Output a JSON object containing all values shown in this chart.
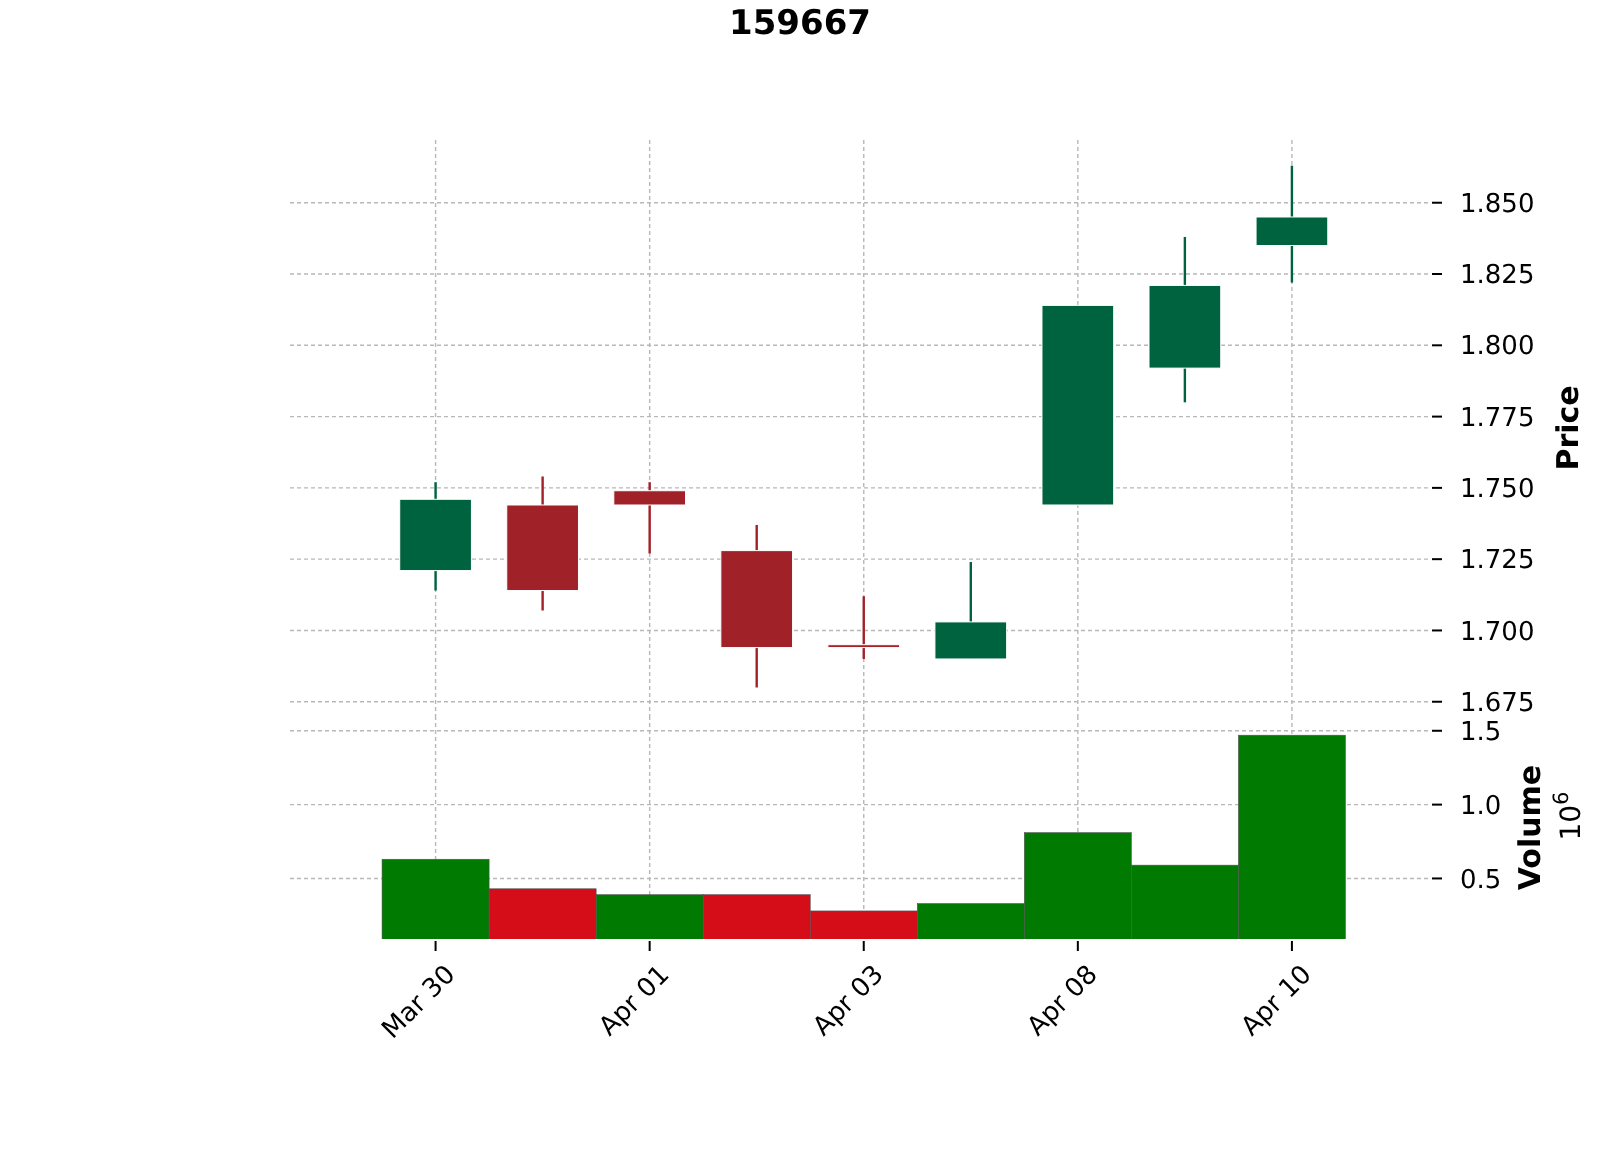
{
  "chart_data": [
    {
      "type": "candlestick",
      "title": "159667",
      "ylabel": "Price",
      "categories": [
        null,
        null,
        null,
        null,
        null,
        null,
        null,
        null,
        null
      ],
      "ohlc": [
        [
          1.721,
          1.752,
          1.714,
          1.746
        ],
        [
          1.744,
          1.754,
          1.707,
          1.714
        ],
        [
          1.749,
          1.752,
          1.727,
          1.744
        ],
        [
          1.728,
          1.737,
          1.68,
          1.694
        ],
        [
          1.695,
          1.712,
          1.69,
          1.694
        ],
        [
          1.69,
          1.724,
          1.69,
          1.703
        ],
        [
          1.744,
          1.814,
          1.744,
          1.814
        ],
        [
          1.792,
          1.838,
          1.78,
          1.821
        ],
        [
          1.835,
          1.863,
          1.822,
          1.845
        ]
      ],
      "colors": [
        "#006340",
        "#a02128",
        "#a02128",
        "#a02128",
        "#a02128",
        "#006340",
        "#006340",
        "#006340",
        "#006340"
      ],
      "ylim": [
        1.67,
        1.872
      ],
      "yticks": [
        1.675,
        {
          "value": 1.7,
          "label": "1.700"
        },
        1.725,
        {
          "value": 1.75,
          "label": "1.750"
        },
        1.775,
        {
          "value": 1.8,
          "label": "1.800"
        },
        1.825,
        {
          "value": 1.85,
          "label": "1.850"
        }
      ],
      "grid": true
    },
    {
      "type": "bar",
      "ylabel": "Volume",
      "annotations": [
        "10$^{6}$"
      ],
      "categories": [
        "Mar 30",
        null,
        "Apr 01",
        null,
        "Apr 03",
        null,
        "Apr 08",
        null,
        "Apr 10"
      ],
      "values": [
        0.63,
        0.43,
        0.39,
        0.39,
        0.28,
        0.33,
        0.81,
        0.59,
        1.47
      ],
      "colors": [
        "#007a00",
        "#d50d18",
        "#007a00",
        "#d50d18",
        "#d50d18",
        "#007a00",
        "#007a00",
        "#007a00",
        "#007a00"
      ],
      "ylim": [
        0.09,
        1.6
      ],
      "yticks": [
        0.5,
        {
          "value": 1,
          "label": "1.0"
        },
        1.5
      ],
      "grid": true
    }
  ]
}
